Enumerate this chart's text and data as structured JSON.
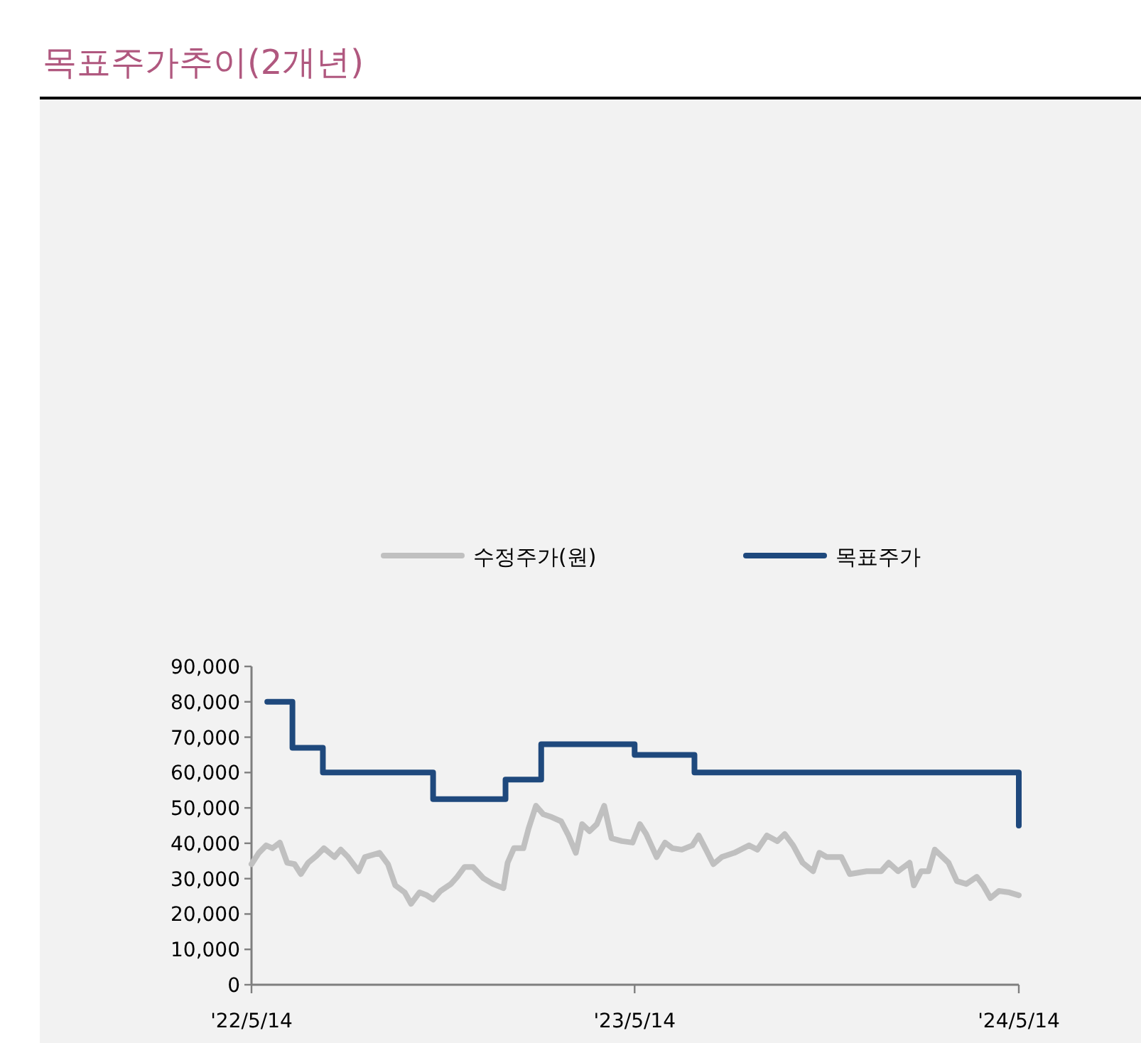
{
  "chart_data": {
    "type": "line",
    "title": "목표주가추이(2개년)",
    "xlim": [
      "2022-05-14",
      "2024-05-14"
    ],
    "xticks": [
      {
        "value": "2022-05-14",
        "label": "'22/5/14"
      },
      {
        "value": "2023-05-14",
        "label": "'23/5/14"
      },
      {
        "value": "2024-05-14",
        "label": "'24/5/14"
      }
    ],
    "ylim": [
      0,
      90000
    ],
    "yticks": [
      {
        "value": 0,
        "label": "0"
      },
      {
        "value": 10000,
        "label": "10,000"
      },
      {
        "value": 20000,
        "label": "20,000"
      },
      {
        "value": 30000,
        "label": "30,000"
      },
      {
        "value": 40000,
        "label": "40,000"
      },
      {
        "value": 50000,
        "label": "50,000"
      },
      {
        "value": 60000,
        "label": "60,000"
      },
      {
        "value": 70000,
        "label": "70,000"
      },
      {
        "value": 80000,
        "label": "80,000"
      },
      {
        "value": 90000,
        "label": "90,000"
      }
    ],
    "grid": false,
    "legend": "top",
    "series": [
      {
        "name": "수정주가(원)",
        "type": "line",
        "color": "#c0c0c0",
        "x": [
          "2022-05-14",
          "2022-05-21",
          "2022-05-28",
          "2022-06-03",
          "2022-06-10",
          "2022-06-17",
          "2022-06-24",
          "2022-06-30",
          "2022-07-07",
          "2022-07-15",
          "2022-07-22",
          "2022-08-01",
          "2022-08-07",
          "2022-08-14",
          "2022-08-24",
          "2022-08-30",
          "2022-09-13",
          "2022-09-21",
          "2022-09-28",
          "2022-10-07",
          "2022-10-13",
          "2022-10-21",
          "2022-10-28",
          "2022-11-03",
          "2022-11-10",
          "2022-11-20",
          "2022-11-26",
          "2022-12-03",
          "2022-12-11",
          "2022-12-21",
          "2022-12-30",
          "2023-01-09",
          "2023-01-13",
          "2023-01-19",
          "2023-01-28",
          "2023-02-02",
          "2023-02-09",
          "2023-02-16",
          "2023-02-24",
          "2023-03-05",
          "2023-03-12",
          "2023-03-19",
          "2023-03-25",
          "2023-04-01",
          "2023-04-08",
          "2023-04-15",
          "2023-04-22",
          "2023-05-02",
          "2023-05-12",
          "2023-05-19",
          "2023-05-25",
          "2023-06-04",
          "2023-06-12",
          "2023-06-19",
          "2023-06-28",
          "2023-07-08",
          "2023-07-14",
          "2023-07-21",
          "2023-07-28",
          "2023-08-05",
          "2023-08-17",
          "2023-08-31",
          "2023-09-08",
          "2023-09-17",
          "2023-09-27",
          "2023-10-04",
          "2023-10-12",
          "2023-10-21",
          "2023-10-31",
          "2023-11-06",
          "2023-11-13",
          "2023-11-27",
          "2023-12-05",
          "2023-12-21",
          "2024-01-04",
          "2024-01-11",
          "2024-01-20",
          "2024-01-31",
          "2024-02-04",
          "2024-02-11",
          "2024-02-18",
          "2024-02-24",
          "2024-03-08",
          "2024-03-16",
          "2024-03-25",
          "2024-04-04",
          "2024-04-10",
          "2024-04-17",
          "2024-04-25",
          "2024-05-05",
          "2024-05-14"
        ],
        "values": [
          34100,
          37300,
          39400,
          38600,
          40200,
          34500,
          34100,
          31300,
          34500,
          36500,
          38600,
          36100,
          38200,
          36100,
          32100,
          36100,
          37300,
          34100,
          28100,
          26100,
          22900,
          26100,
          25300,
          24100,
          26500,
          28500,
          30500,
          33300,
          33300,
          30100,
          28500,
          27300,
          34500,
          38600,
          38600,
          44200,
          50600,
          48200,
          47400,
          46200,
          42200,
          37300,
          45400,
          43400,
          45400,
          50600,
          41400,
          40600,
          40200,
          45400,
          42600,
          36100,
          40200,
          38600,
          38200,
          39400,
          42200,
          38200,
          34100,
          36100,
          37300,
          39400,
          38200,
          42200,
          40600,
          42600,
          39400,
          34500,
          32100,
          37300,
          36100,
          36100,
          31300,
          32100,
          32100,
          34500,
          32100,
          34500,
          28100,
          32100,
          32100,
          38200,
          34500,
          29300,
          28500,
          30500,
          28100,
          24500,
          26500,
          26100,
          25300
        ]
      },
      {
        "name": "목표주가",
        "type": "step",
        "color": "#1f497d",
        "x": [
          "2022-05-29",
          "2022-06-22",
          "2022-07-21",
          "2022-11-03",
          "2023-01-11",
          "2023-02-14",
          "2023-05-14",
          "2023-07-10",
          "2024-05-13",
          "2024-05-14"
        ],
        "values": [
          80000,
          67000,
          60000,
          52500,
          58000,
          68000,
          65000,
          60000,
          60000,
          45000
        ]
      }
    ]
  }
}
